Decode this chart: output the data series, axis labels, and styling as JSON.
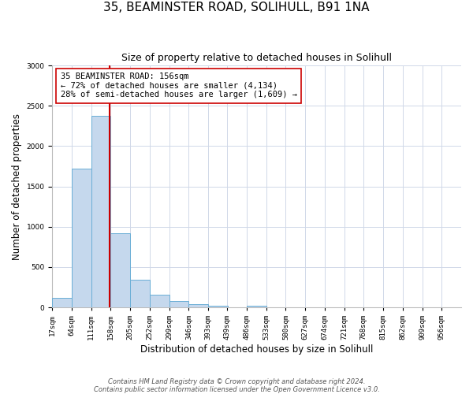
{
  "title": "35, BEAMINSTER ROAD, SOLIHULL, B91 1NA",
  "subtitle": "Size of property relative to detached houses in Solihull",
  "xlabel": "Distribution of detached houses by size in Solihull",
  "ylabel": "Number of detached properties",
  "bin_labels": [
    "17sqm",
    "64sqm",
    "111sqm",
    "158sqm",
    "205sqm",
    "252sqm",
    "299sqm",
    "346sqm",
    "393sqm",
    "439sqm",
    "486sqm",
    "533sqm",
    "580sqm",
    "627sqm",
    "674sqm",
    "721sqm",
    "768sqm",
    "815sqm",
    "862sqm",
    "909sqm",
    "956sqm"
  ],
  "bin_edges": [
    17,
    64,
    111,
    158,
    205,
    252,
    299,
    346,
    393,
    439,
    486,
    533,
    580,
    627,
    674,
    721,
    768,
    815,
    862,
    909,
    956
  ],
  "bar_heights": [
    120,
    1720,
    2380,
    920,
    345,
    155,
    80,
    40,
    25,
    0,
    20,
    0,
    0,
    0,
    0,
    0,
    0,
    0,
    0,
    0
  ],
  "bar_color": "#c5d8ed",
  "bar_edge_color": "#6aaed6",
  "property_value": 156,
  "vline_color": "#cc0000",
  "annotation_line1": "35 BEAMINSTER ROAD: 156sqm",
  "annotation_line2": "← 72% of detached houses are smaller (4,134)",
  "annotation_line3": "28% of semi-detached houses are larger (1,609) →",
  "annotation_box_color": "#ffffff",
  "annotation_box_edge_color": "#cc0000",
  "ylim": [
    0,
    3000
  ],
  "yticks": [
    0,
    500,
    1000,
    1500,
    2000,
    2500,
    3000
  ],
  "footer_line1": "Contains HM Land Registry data © Crown copyright and database right 2024.",
  "footer_line2": "Contains public sector information licensed under the Open Government Licence v3.0.",
  "grid_color": "#d0d8e8",
  "title_fontsize": 11,
  "subtitle_fontsize": 9,
  "axis_label_fontsize": 8.5,
  "tick_fontsize": 6.5,
  "annotation_fontsize": 7.5,
  "footer_fontsize": 6
}
